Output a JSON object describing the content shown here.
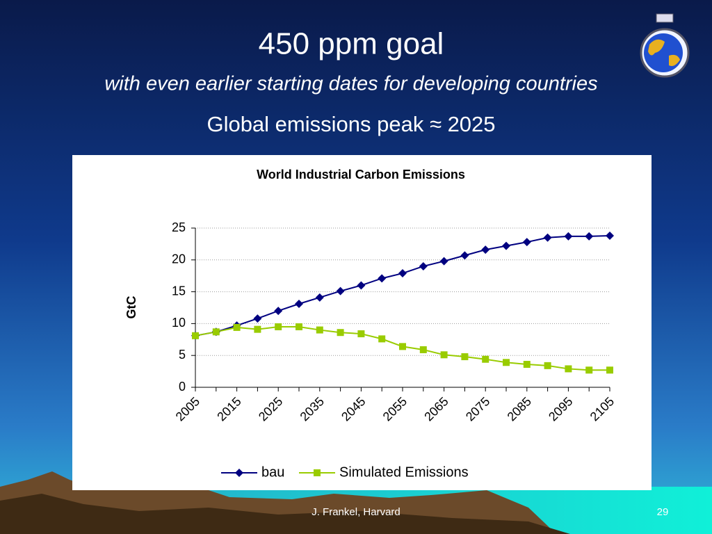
{
  "slide": {
    "title": "450 ppm goal",
    "subtitle": "with even earlier starting dates for developing countries",
    "heading": "Global emissions peak ≈ 2025",
    "footer": "J. Frankel, Harvard",
    "page_number": "29"
  },
  "chart_data": {
    "type": "line",
    "title": "World Industrial Carbon Emissions",
    "y_label": "GtC",
    "categories": [
      "2005",
      null,
      "2015",
      null,
      "2025",
      null,
      "2035",
      null,
      "2045",
      null,
      "2055",
      null,
      "2065",
      null,
      "2075",
      null,
      "2085",
      null,
      "2095",
      null,
      "2105"
    ],
    "series": [
      {
        "name": "bau",
        "color": "#000080",
        "marker": "diamond",
        "values": [
          8.1,
          8.7,
          9.7,
          10.8,
          12.0,
          13.1,
          14.1,
          15.1,
          16.0,
          17.1,
          17.9,
          19.0,
          19.8,
          20.7,
          21.6,
          22.2,
          22.8,
          23.5,
          23.7,
          23.7,
          23.8
        ]
      },
      {
        "name": "Simulated Emissions",
        "color": "#99cc00",
        "marker": "square",
        "values": [
          8.1,
          8.7,
          9.4,
          9.1,
          9.5,
          9.5,
          9.0,
          8.6,
          8.4,
          7.6,
          6.4,
          5.9,
          5.1,
          4.8,
          4.4,
          3.9,
          3.6,
          3.4,
          2.9,
          2.7,
          2.7
        ]
      }
    ],
    "ylim": [
      0,
      25
    ],
    "yticks": [
      0,
      5,
      10,
      15,
      20,
      25
    ],
    "grid": true,
    "legend": "bottom"
  }
}
